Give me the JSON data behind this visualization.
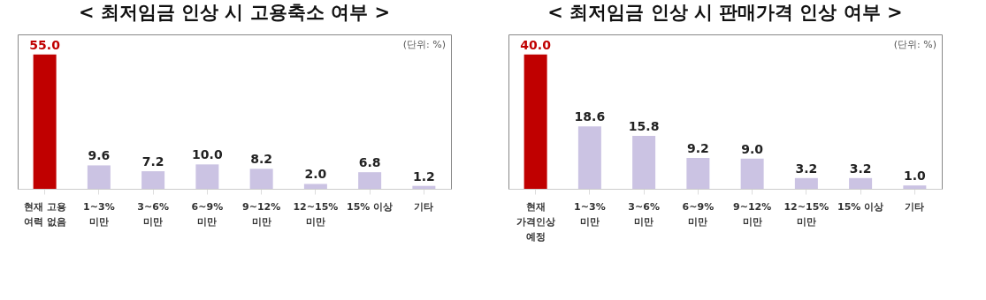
{
  "chart_data": [
    {
      "type": "bar",
      "title": "< 최저임금 인상 시 고용축소 여부 >",
      "categories": [
        "현재 고용\n여력 없음",
        "1~3%\n미만",
        "3~6%\n미만",
        "6~9%\n미만",
        "9~12%\n미만",
        "12~15%\n미만",
        "15% 이상",
        "기타"
      ],
      "values": [
        55.0,
        9.6,
        7.2,
        10.0,
        8.2,
        2.0,
        6.8,
        1.2
      ],
      "colors": [
        "#c00000",
        "#cbc3e3",
        "#cbc3e3",
        "#cbc3e3",
        "#cbc3e3",
        "#cbc3e3",
        "#cbc3e3",
        "#cbc3e3"
      ],
      "value_labels": [
        "55.0",
        "9.6",
        "7.2",
        "10.0",
        "8.2",
        "2.0",
        "6.8",
        "1.2"
      ],
      "annotations": [
        "(단위: %)"
      ]
    },
    {
      "type": "bar",
      "title": "< 최저임금 인상 시 판매가격 인상 여부 >",
      "categories": [
        "현재\n가격인상\n예정",
        "1~3%\n미만",
        "3~6%\n미만",
        "6~9%\n미만",
        "9~12%\n미만",
        "12~15%\n미만",
        "15% 이상",
        "기타"
      ],
      "values": [
        40.0,
        18.6,
        15.8,
        9.2,
        9.0,
        3.2,
        3.2,
        1.0
      ],
      "colors": [
        "#c00000",
        "#cbc3e3",
        "#cbc3e3",
        "#cbc3e3",
        "#cbc3e3",
        "#cbc3e3",
        "#cbc3e3",
        "#cbc3e3"
      ],
      "value_labels": [
        "40.0",
        "18.6",
        "15.8",
        "9.2",
        "9.0",
        "3.2",
        "3.2",
        "1.0"
      ],
      "annotations": [
        "(단위: %)"
      ]
    }
  ]
}
